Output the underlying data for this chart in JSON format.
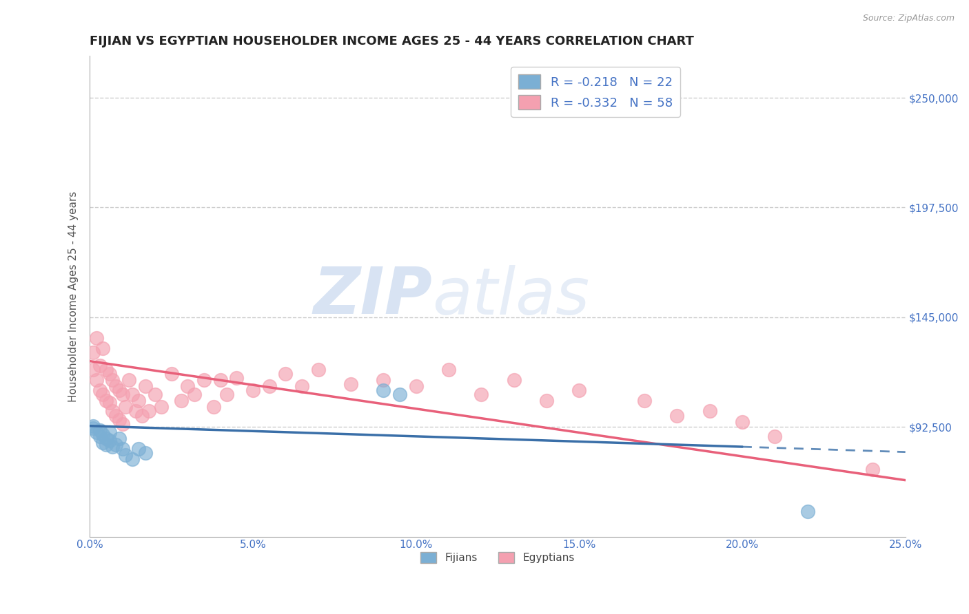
{
  "title": "FIJIAN VS EGYPTIAN HOUSEHOLDER INCOME AGES 25 - 44 YEARS CORRELATION CHART",
  "source": "Source: ZipAtlas.com",
  "ylabel": "Householder Income Ages 25 - 44 years",
  "xlim": [
    0.0,
    0.25
  ],
  "ylim": [
    40000,
    270000
  ],
  "yticks": [
    92500,
    145000,
    197500,
    250000
  ],
  "ytick_labels": [
    "$92,500",
    "$145,000",
    "$197,500",
    "$250,000"
  ],
  "xticks": [
    0.0,
    0.05,
    0.1,
    0.15,
    0.2,
    0.25
  ],
  "xtick_labels": [
    "0.0%",
    "5.0%",
    "10.0%",
    "15.0%",
    "20.0%",
    "25.0%"
  ],
  "fijian_x": [
    0.001,
    0.001,
    0.002,
    0.003,
    0.003,
    0.004,
    0.004,
    0.005,
    0.005,
    0.006,
    0.006,
    0.007,
    0.008,
    0.009,
    0.01,
    0.011,
    0.013,
    0.015,
    0.017,
    0.09,
    0.095,
    0.22
  ],
  "fijian_y": [
    92000,
    93000,
    90000,
    88000,
    91000,
    89000,
    85000,
    87000,
    84000,
    90000,
    86000,
    83000,
    84000,
    87000,
    82000,
    79000,
    77000,
    82000,
    80000,
    110000,
    108000,
    52000
  ],
  "egyptian_x": [
    0.001,
    0.001,
    0.002,
    0.002,
    0.003,
    0.003,
    0.004,
    0.004,
    0.005,
    0.005,
    0.006,
    0.006,
    0.007,
    0.007,
    0.008,
    0.008,
    0.009,
    0.009,
    0.01,
    0.01,
    0.011,
    0.012,
    0.013,
    0.014,
    0.015,
    0.016,
    0.017,
    0.018,
    0.02,
    0.022,
    0.025,
    0.028,
    0.03,
    0.032,
    0.035,
    0.038,
    0.04,
    0.042,
    0.045,
    0.05,
    0.055,
    0.06,
    0.065,
    0.07,
    0.08,
    0.09,
    0.1,
    0.11,
    0.12,
    0.13,
    0.14,
    0.15,
    0.17,
    0.18,
    0.19,
    0.2,
    0.21,
    0.24
  ],
  "egyptian_y": [
    128000,
    120000,
    135000,
    115000,
    122000,
    110000,
    130000,
    108000,
    120000,
    105000,
    118000,
    104000,
    115000,
    100000,
    112000,
    98000,
    110000,
    96000,
    108000,
    94000,
    102000,
    115000,
    108000,
    100000,
    105000,
    98000,
    112000,
    100000,
    108000,
    102000,
    118000,
    105000,
    112000,
    108000,
    115000,
    102000,
    115000,
    108000,
    116000,
    110000,
    112000,
    118000,
    112000,
    120000,
    113000,
    115000,
    112000,
    120000,
    108000,
    115000,
    105000,
    110000,
    105000,
    98000,
    100000,
    95000,
    88000,
    72000
  ],
  "fijian_color": "#7bafd4",
  "egyptian_color": "#f4a0b0",
  "fijian_line_color": "#3a6fa8",
  "egyptian_line_color": "#e8607a",
  "fijian_R": -0.218,
  "fijian_N": 22,
  "egyptian_R": -0.332,
  "egyptian_N": 58,
  "watermark_zip": "ZIP",
  "watermark_atlas": "atlas",
  "background_color": "#ffffff",
  "legend_fijians": "Fijians",
  "legend_egyptians": "Egyptians",
  "title_color": "#222222",
  "axis_label_color": "#555555",
  "tick_color_right": "#4472c4",
  "tick_color_bottom": "#4472c4",
  "grid_color": "#cccccc",
  "title_fontsize": 13,
  "axis_label_fontsize": 11,
  "fijian_trend_x0": 0.0,
  "fijian_trend_y0": 93000,
  "fijian_trend_x1": 0.2,
  "fijian_trend_y1": 83000,
  "fijian_trend_dash_x1": 0.25,
  "fijian_trend_dash_y1": 80500,
  "egyptian_trend_x0": 0.0,
  "egyptian_trend_y0": 124000,
  "egyptian_trend_x1": 0.25,
  "egyptian_trend_y1": 67000
}
